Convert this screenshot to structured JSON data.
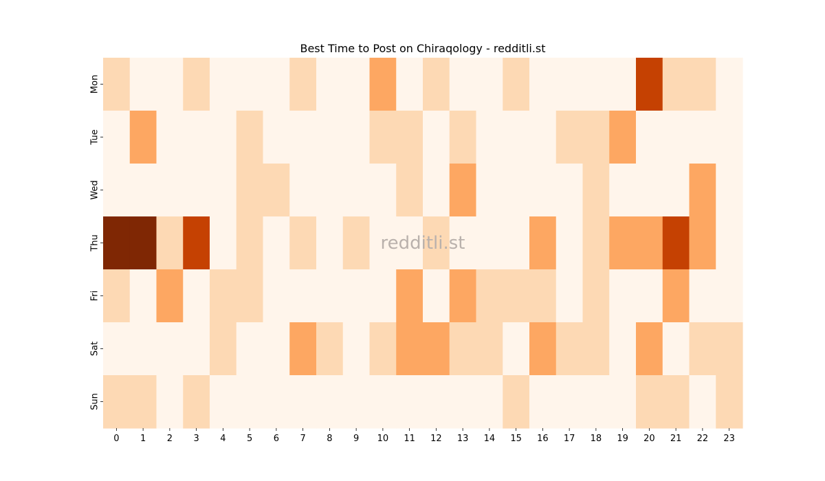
{
  "chart_data": {
    "type": "heatmap",
    "title": "Best Time to Post on Chiraqology - redditli.st",
    "watermark": "redditli.st",
    "xlabel": "",
    "ylabel": "",
    "x_categories": [
      "0",
      "1",
      "2",
      "3",
      "4",
      "5",
      "6",
      "7",
      "8",
      "9",
      "10",
      "11",
      "12",
      "13",
      "14",
      "15",
      "16",
      "17",
      "18",
      "19",
      "20",
      "21",
      "22",
      "23"
    ],
    "y_categories": [
      "Mon",
      "Tue",
      "Wed",
      "Thu",
      "Fri",
      "Sat",
      "Sun"
    ],
    "values": [
      [
        1,
        0,
        0,
        1,
        0,
        0,
        0,
        1,
        0,
        0,
        2,
        0,
        1,
        0,
        0,
        1,
        0,
        0,
        0,
        0,
        4,
        1,
        1,
        0
      ],
      [
        0,
        2,
        0,
        0,
        0,
        1,
        0,
        0,
        0,
        0,
        1,
        1,
        0,
        1,
        0,
        0,
        0,
        1,
        1,
        2,
        0,
        0,
        0,
        0
      ],
      [
        0,
        0,
        0,
        0,
        0,
        1,
        1,
        0,
        0,
        0,
        0,
        1,
        0,
        2,
        0,
        0,
        0,
        0,
        1,
        0,
        0,
        0,
        2,
        0
      ],
      [
        7,
        5,
        1,
        4,
        0,
        1,
        0,
        1,
        0,
        1,
        0,
        0,
        1,
        0,
        0,
        0,
        2,
        0,
        1,
        2,
        2,
        4,
        2,
        0
      ],
      [
        1,
        0,
        2,
        0,
        1,
        1,
        0,
        0,
        0,
        0,
        0,
        2,
        0,
        2,
        1,
        1,
        1,
        0,
        1,
        0,
        0,
        2,
        0,
        0
      ],
      [
        0,
        0,
        0,
        0,
        1,
        0,
        0,
        2,
        1,
        0,
        1,
        2,
        2,
        1,
        1,
        0,
        2,
        1,
        1,
        0,
        2,
        0,
        1,
        1
      ],
      [
        1,
        1,
        0,
        1,
        0,
        0,
        0,
        0,
        0,
        0,
        0,
        0,
        0,
        0,
        0,
        1,
        0,
        0,
        0,
        0,
        1,
        1,
        0,
        1
      ]
    ],
    "colormap": [
      "#fff5eb",
      "#fdd9b4",
      "#fda762",
      "#f3701b",
      "#c54102",
      "#7f2704"
    ],
    "grid": false,
    "legend": "none"
  }
}
